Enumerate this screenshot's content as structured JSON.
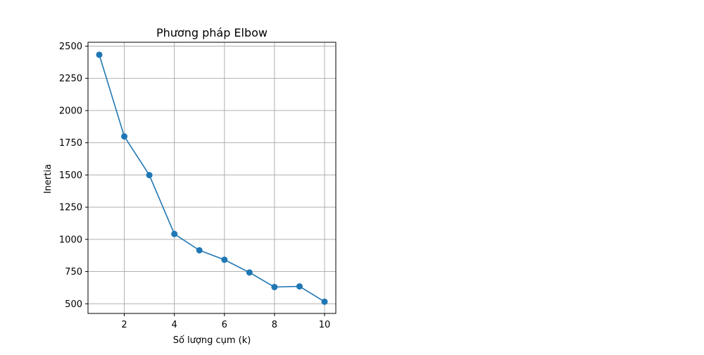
{
  "chart_data": {
    "type": "line",
    "title": "Phương pháp Elbow",
    "xlabel": "Số lượng cụm (k)",
    "ylabel": "Inertia",
    "x": [
      1,
      2,
      3,
      4,
      5,
      6,
      7,
      8,
      9,
      10
    ],
    "series": [
      {
        "values": [
          2433,
          1799,
          1499,
          1042,
          915,
          842,
          743,
          630,
          635,
          516
        ],
        "color": "#1f77b4",
        "marker": "circle"
      }
    ],
    "xlim": [
      0.55,
      10.45
    ],
    "ylim": [
      425,
      2530
    ],
    "xticks": [
      2,
      4,
      6,
      8,
      10
    ],
    "yticks": [
      500,
      750,
      1000,
      1250,
      1500,
      1750,
      2000,
      2250,
      2500
    ],
    "grid": true
  }
}
